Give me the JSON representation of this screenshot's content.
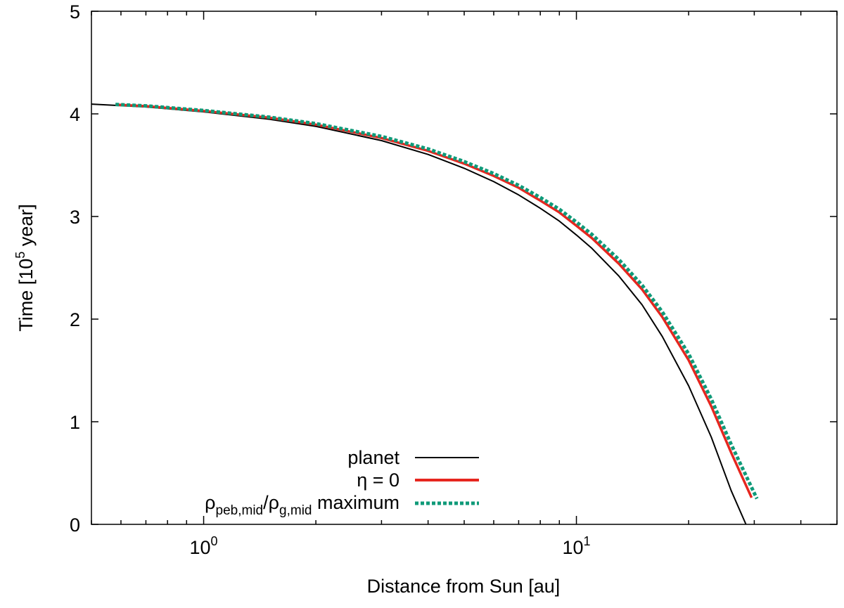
{
  "chart_data": {
    "type": "line",
    "title": "",
    "xlabel": "Distance from Sun [au]",
    "ylabel": {
      "prefix": "Time [10",
      "sup": "5",
      "suffix": " year]"
    },
    "xscale": "log",
    "xlim": [
      0.5,
      50
    ],
    "ylim": [
      0,
      5
    ],
    "x_ticks": [
      {
        "value": 1,
        "base": "10",
        "exp": "0"
      },
      {
        "value": 10,
        "base": "10",
        "exp": "1"
      }
    ],
    "y_ticks": [
      {
        "value": 0,
        "label": "0"
      },
      {
        "value": 1,
        "label": "1"
      },
      {
        "value": 2,
        "label": "2"
      },
      {
        "value": 3,
        "label": "3"
      },
      {
        "value": 4,
        "label": "4"
      },
      {
        "value": 5,
        "label": "5"
      }
    ],
    "legend_position": "bottom-center",
    "series": [
      {
        "name": "planet",
        "legend_label": "planet",
        "color": "#000000",
        "style": "solid",
        "points": [
          [
            0.5,
            4.095
          ],
          [
            0.7,
            4.068
          ],
          [
            1.0,
            4.02
          ],
          [
            1.5,
            3.948
          ],
          [
            2.0,
            3.878
          ],
          [
            3.0,
            3.74
          ],
          [
            4.0,
            3.605
          ],
          [
            5.0,
            3.47
          ],
          [
            6.0,
            3.34
          ],
          [
            7.0,
            3.21
          ],
          [
            8.0,
            3.08
          ],
          [
            9.0,
            2.955
          ],
          [
            10.0,
            2.82
          ],
          [
            11.0,
            2.69
          ],
          [
            13.0,
            2.42
          ],
          [
            15.0,
            2.14
          ],
          [
            17.0,
            1.83
          ],
          [
            20.0,
            1.35
          ],
          [
            23.0,
            0.85
          ],
          [
            26.0,
            0.33
          ],
          [
            28.5,
            0.0
          ]
        ]
      },
      {
        "name": "eta0",
        "legend_label": "η = 0",
        "color": "#e6261f",
        "style": "solid",
        "points": [
          [
            0.58,
            4.09
          ],
          [
            0.7,
            4.075
          ],
          [
            1.0,
            4.028
          ],
          [
            1.5,
            3.962
          ],
          [
            2.0,
            3.895
          ],
          [
            3.0,
            3.765
          ],
          [
            4.0,
            3.64
          ],
          [
            5.0,
            3.515
          ],
          [
            6.0,
            3.395
          ],
          [
            7.0,
            3.28
          ],
          [
            8.0,
            3.155
          ],
          [
            9.0,
            3.04
          ],
          [
            10.0,
            2.91
          ],
          [
            11.0,
            2.79
          ],
          [
            13.0,
            2.54
          ],
          [
            15.0,
            2.29
          ],
          [
            17.0,
            2.02
          ],
          [
            20.0,
            1.6
          ],
          [
            23.0,
            1.15
          ],
          [
            26.0,
            0.7
          ],
          [
            29.5,
            0.26
          ]
        ]
      },
      {
        "name": "max-ratio",
        "legend_label_rho1": "ρ",
        "legend_label_sub1": "peb,mid",
        "legend_label_slash": "/",
        "legend_label_rho2": "ρ",
        "legend_label_sub2": "g,mid",
        "legend_label_suffix": " maximum",
        "color": "#0f9a79",
        "style": "dotted",
        "points": [
          [
            0.58,
            4.092
          ],
          [
            0.7,
            4.078
          ],
          [
            1.0,
            4.033
          ],
          [
            1.5,
            3.968
          ],
          [
            2.0,
            3.905
          ],
          [
            3.0,
            3.78
          ],
          [
            4.0,
            3.658
          ],
          [
            5.0,
            3.535
          ],
          [
            6.0,
            3.418
          ],
          [
            7.0,
            3.303
          ],
          [
            8.0,
            3.185
          ],
          [
            9.0,
            3.07
          ],
          [
            10.0,
            2.945
          ],
          [
            11.0,
            2.825
          ],
          [
            13.0,
            2.58
          ],
          [
            15.0,
            2.33
          ],
          [
            17.0,
            2.07
          ],
          [
            20.0,
            1.66
          ],
          [
            23.0,
            1.22
          ],
          [
            26.0,
            0.78
          ],
          [
            30.5,
            0.25
          ]
        ]
      }
    ]
  }
}
